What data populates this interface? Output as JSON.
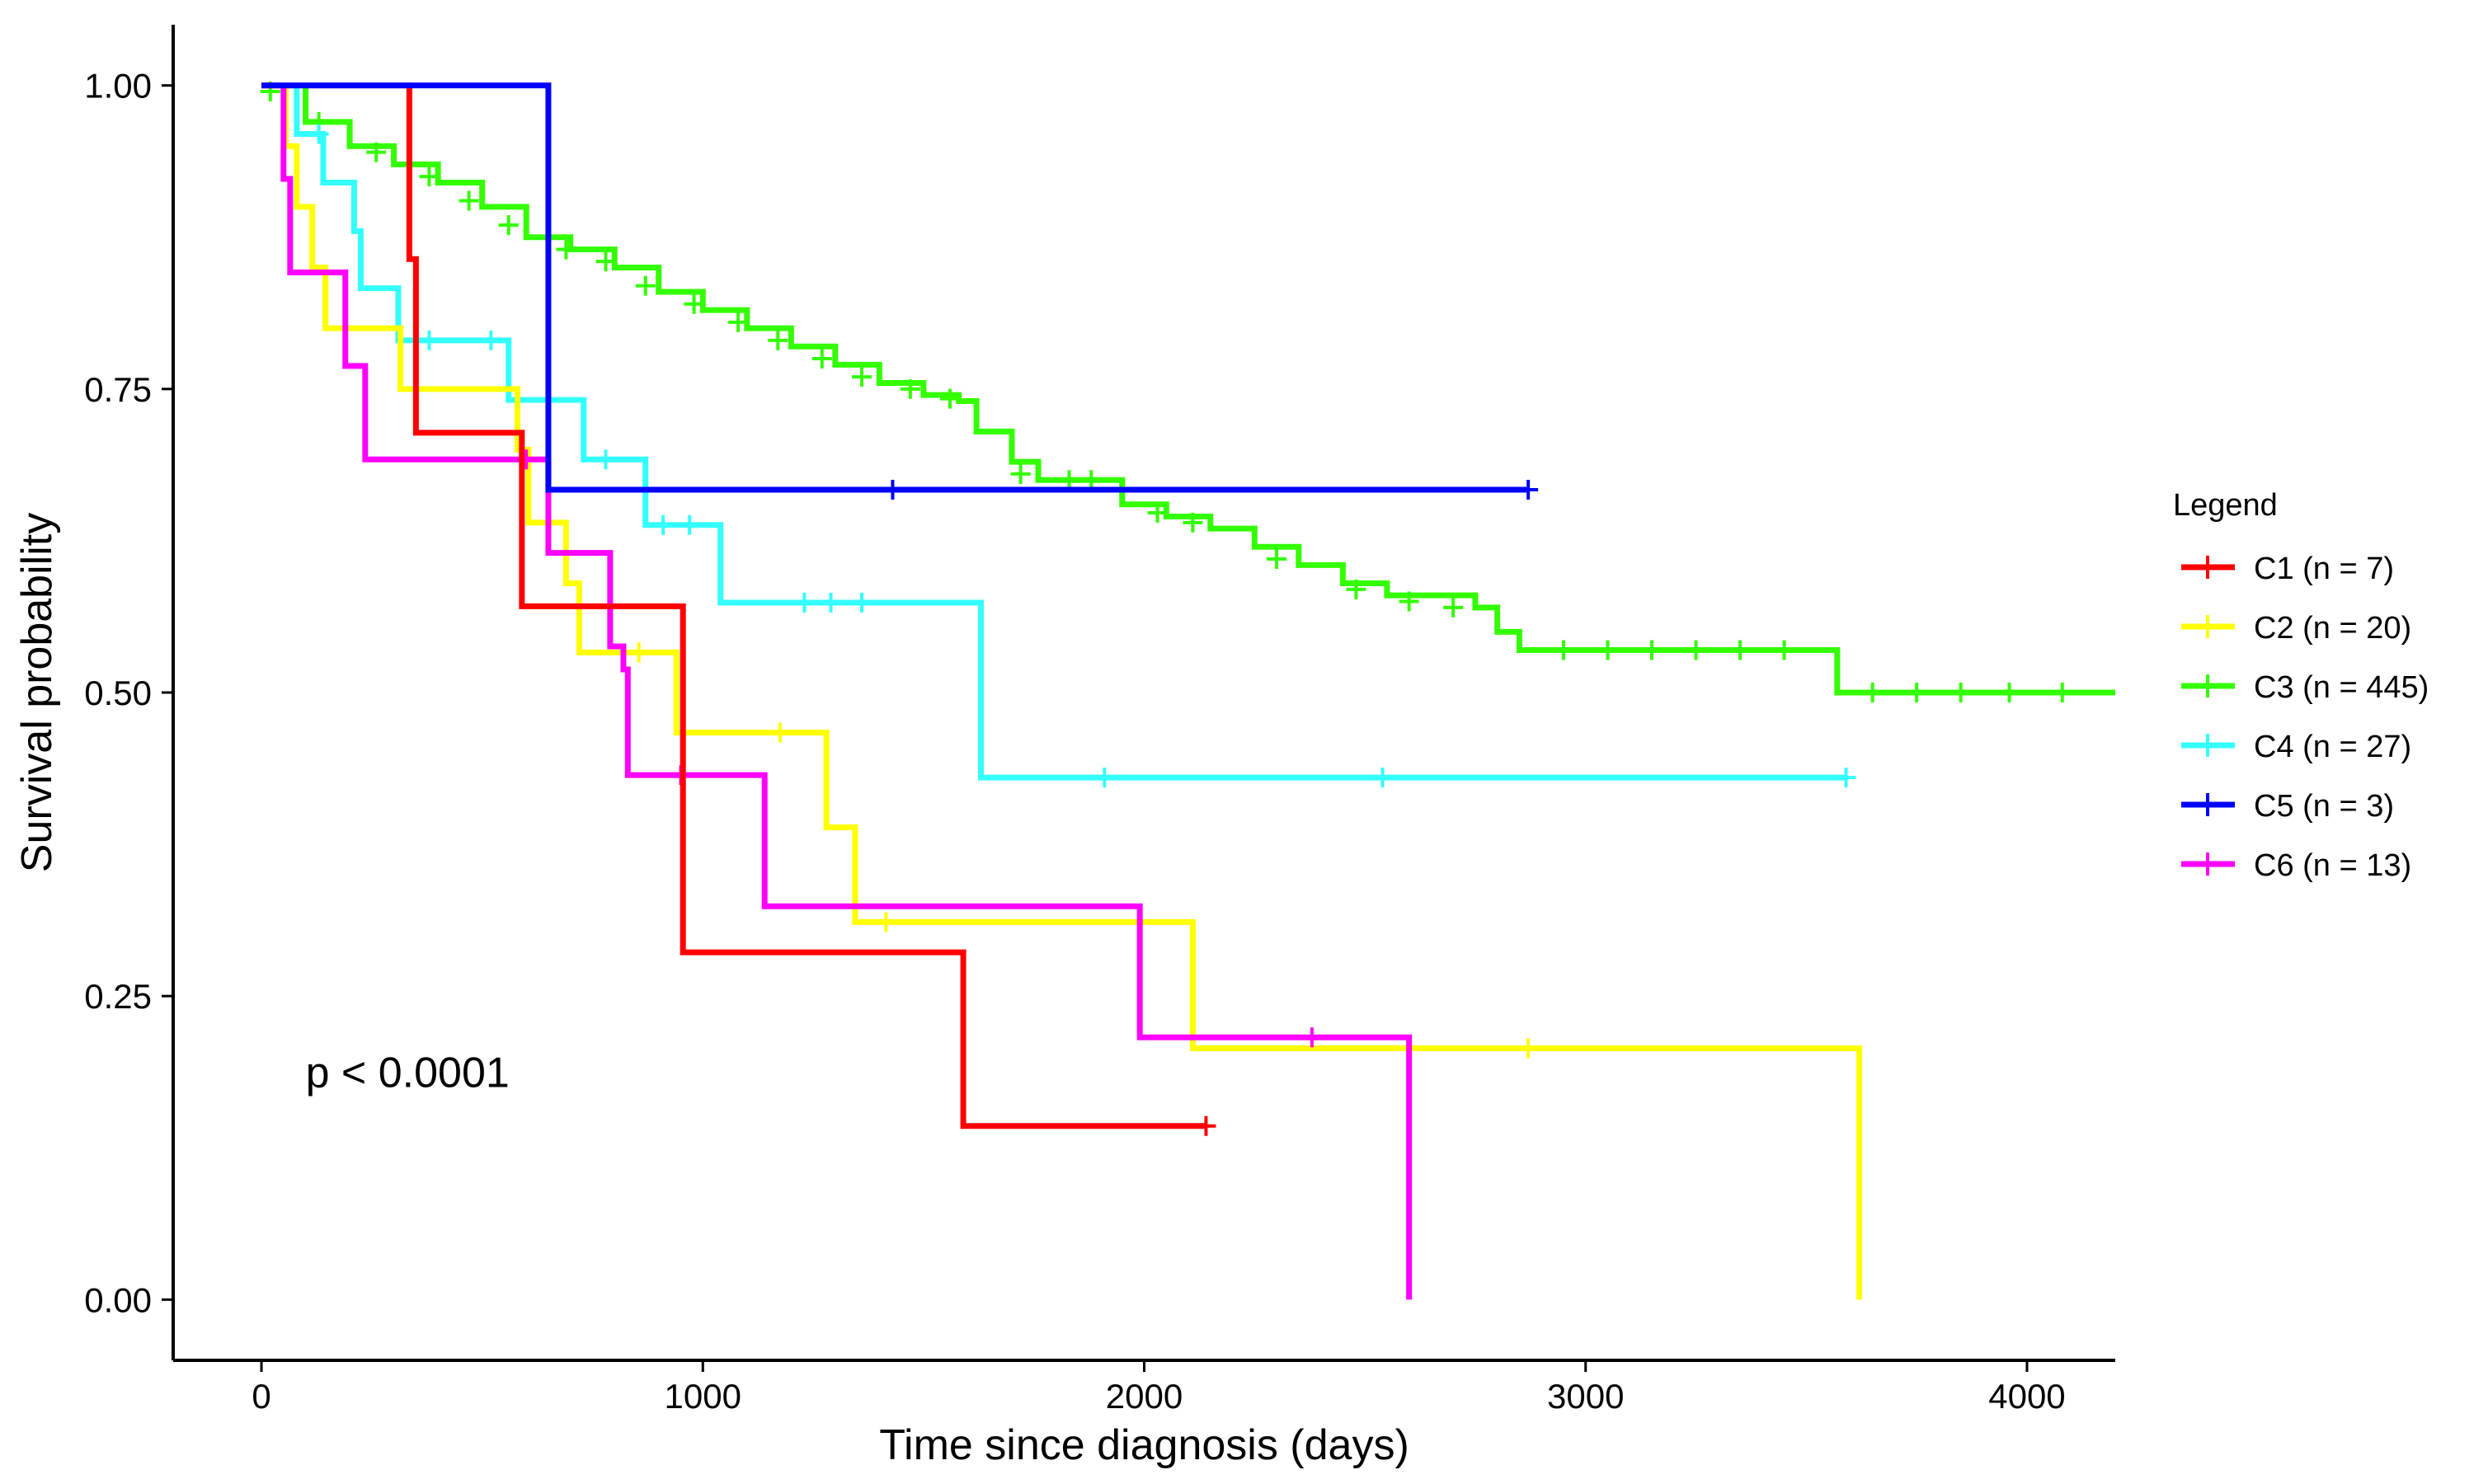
{
  "chart_data": {
    "type": "line",
    "title": "",
    "xlabel": "Time since diagnosis (days)",
    "ylabel": "Survival probability",
    "xlim": [
      -200,
      4200
    ],
    "ylim": [
      -0.05,
      1.05
    ],
    "x_ticks": [
      0,
      1000,
      2000,
      3000,
      4000
    ],
    "x_tick_labels": [
      "0",
      "1000",
      "2000",
      "3000",
      "4000"
    ],
    "y_ticks": [
      0,
      0.25,
      0.5,
      0.75,
      1
    ],
    "y_tick_labels": [
      "0.00",
      "0.25",
      "0.50",
      "0.75",
      "1.00"
    ],
    "grid": false,
    "legend_title": "Legend",
    "legend_position": "right",
    "annotation": "p < 0.0001",
    "series": [
      {
        "name": "C1 (n = 7)",
        "color": "#FF0000",
        "steps": [
          [
            0,
            1
          ],
          [
            335,
            0.857
          ],
          [
            350,
            0.714
          ],
          [
            590,
            0.571
          ],
          [
            955,
            0.286
          ],
          [
            1590,
            0.143
          ],
          [
            2140,
            0.143
          ]
        ],
        "censors": [
          [
            2140,
            0.143
          ]
        ]
      },
      {
        "name": "C2 (n = 20)",
        "color": "#FFFF00",
        "steps": [
          [
            0,
            1
          ],
          [
            55,
            0.95
          ],
          [
            80,
            0.9
          ],
          [
            115,
            0.85
          ],
          [
            145,
            0.8
          ],
          [
            315,
            0.75
          ],
          [
            580,
            0.7
          ],
          [
            605,
            0.64
          ],
          [
            690,
            0.59
          ],
          [
            720,
            0.533
          ],
          [
            940,
            0.467
          ],
          [
            1280,
            0.389
          ],
          [
            1345,
            0.311
          ],
          [
            2110,
            0.207
          ],
          [
            3620,
            0.207
          ],
          [
            3620,
            0
          ]
        ],
        "censors": [
          [
            855,
            0.533
          ],
          [
            1175,
            0.467
          ],
          [
            1415,
            0.311
          ],
          [
            2870,
            0.207
          ]
        ]
      },
      {
        "name": "C3 (n = 445)",
        "color": "#33FF00",
        "steps": [
          [
            0,
            1
          ],
          [
            100,
            0.97
          ],
          [
            200,
            0.95
          ],
          [
            300,
            0.935
          ],
          [
            400,
            0.92
          ],
          [
            500,
            0.9
          ],
          [
            600,
            0.875
          ],
          [
            700,
            0.865
          ],
          [
            800,
            0.85
          ],
          [
            900,
            0.83
          ],
          [
            1000,
            0.815
          ],
          [
            1100,
            0.8
          ],
          [
            1200,
            0.785
          ],
          [
            1300,
            0.77
          ],
          [
            1400,
            0.755
          ],
          [
            1500,
            0.745
          ],
          [
            1580,
            0.74
          ],
          [
            1620,
            0.715
          ],
          [
            1700,
            0.69
          ],
          [
            1760,
            0.675
          ],
          [
            1900,
            0.675
          ],
          [
            1950,
            0.655
          ],
          [
            2050,
            0.645
          ],
          [
            2150,
            0.635
          ],
          [
            2250,
            0.62
          ],
          [
            2350,
            0.605
          ],
          [
            2450,
            0.59
          ],
          [
            2550,
            0.58
          ],
          [
            2750,
            0.57
          ],
          [
            2800,
            0.55
          ],
          [
            2850,
            0.535
          ],
          [
            3570,
            0.535
          ],
          [
            3570,
            0.5
          ],
          [
            4200,
            0.5
          ]
        ],
        "censors": [
          [
            20,
            0.995
          ],
          [
            130,
            0.97
          ],
          [
            260,
            0.945
          ],
          [
            380,
            0.925
          ],
          [
            470,
            0.905
          ],
          [
            560,
            0.885
          ],
          [
            690,
            0.865
          ],
          [
            780,
            0.855
          ],
          [
            870,
            0.835
          ],
          [
            980,
            0.82
          ],
          [
            1080,
            0.805
          ],
          [
            1170,
            0.79
          ],
          [
            1270,
            0.775
          ],
          [
            1360,
            0.76
          ],
          [
            1470,
            0.75
          ],
          [
            1560,
            0.742
          ],
          [
            1720,
            0.68
          ],
          [
            1830,
            0.675
          ],
          [
            1880,
            0.675
          ],
          [
            2030,
            0.648
          ],
          [
            2110,
            0.64
          ],
          [
            2300,
            0.61
          ],
          [
            2480,
            0.585
          ],
          [
            2600,
            0.575
          ],
          [
            2700,
            0.57
          ],
          [
            2950,
            0.535
          ],
          [
            3050,
            0.535
          ],
          [
            3150,
            0.535
          ],
          [
            3250,
            0.535
          ],
          [
            3350,
            0.535
          ],
          [
            3450,
            0.535
          ],
          [
            3650,
            0.5
          ],
          [
            3750,
            0.5
          ],
          [
            3850,
            0.5
          ],
          [
            3960,
            0.5
          ],
          [
            4080,
            0.5
          ]
        ]
      },
      {
        "name": "C4 (n = 27)",
        "color": "#33FFFF",
        "steps": [
          [
            0,
            1
          ],
          [
            80,
            0.96
          ],
          [
            140,
            0.92
          ],
          [
            210,
            0.88
          ],
          [
            225,
            0.833
          ],
          [
            310,
            0.79
          ],
          [
            560,
            0.741
          ],
          [
            730,
            0.692
          ],
          [
            870,
            0.638
          ],
          [
            1040,
            0.574
          ],
          [
            1630,
            0.43
          ],
          [
            3590,
            0.43
          ]
        ],
        "censors": [
          [
            130,
            0.96
          ],
          [
            380,
            0.79
          ],
          [
            520,
            0.79
          ],
          [
            780,
            0.692
          ],
          [
            910,
            0.638
          ],
          [
            970,
            0.638
          ],
          [
            1230,
            0.574
          ],
          [
            1290,
            0.574
          ],
          [
            1360,
            0.574
          ],
          [
            1910,
            0.43
          ],
          [
            2540,
            0.43
          ],
          [
            3590,
            0.43
          ]
        ]
      },
      {
        "name": "C5 (n = 3)",
        "color": "#0000FF",
        "steps": [
          [
            0,
            1
          ],
          [
            650,
            1
          ],
          [
            650,
            0.667
          ],
          [
            2870,
            0.667
          ]
        ],
        "censors": [
          [
            1430,
            0.667
          ],
          [
            2870,
            0.667
          ]
        ]
      },
      {
        "name": "C6 (n = 13)",
        "color": "#FF00FF",
        "steps": [
          [
            0,
            1
          ],
          [
            50,
            0.923
          ],
          [
            65,
            0.846
          ],
          [
            190,
            0.769
          ],
          [
            235,
            0.692
          ],
          [
            650,
            0.615
          ],
          [
            790,
            0.538
          ],
          [
            820,
            0.519
          ],
          [
            830,
            0.432
          ],
          [
            1140,
            0.324
          ],
          [
            1990,
            0.216
          ],
          [
            2600,
            0.216
          ],
          [
            2600,
            0
          ]
        ],
        "censors": [
          [
            600,
            0.692
          ],
          [
            950,
            0.432
          ],
          [
            2380,
            0.216
          ]
        ]
      }
    ]
  }
}
